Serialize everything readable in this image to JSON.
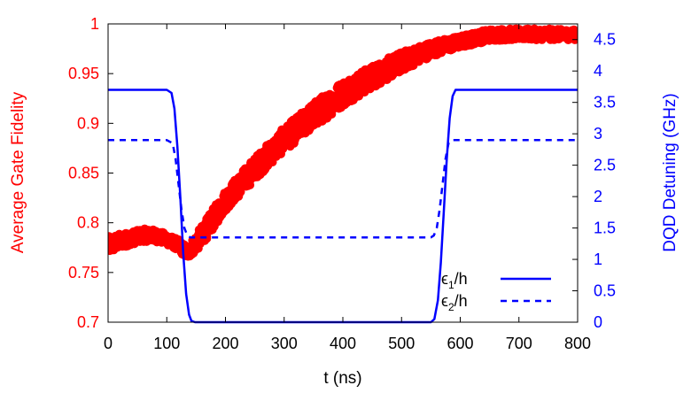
{
  "chart_data": {
    "type": "scatter",
    "xlabel": "t (ns)",
    "ylabel_left": "Average Gate Fidelity",
    "ylabel_right": "DQD Detuning (GHz)",
    "xlim": [
      0,
      800
    ],
    "ylim_left": [
      0.7,
      1.0
    ],
    "ylim_right": [
      0,
      4.75
    ],
    "x_ticks": [
      0,
      100,
      200,
      300,
      400,
      500,
      600,
      700,
      800
    ],
    "y_left_ticks": [
      "0.7",
      "0.75",
      "0.8",
      "0.85",
      "0.9",
      "0.95",
      "1"
    ],
    "y_right_ticks": [
      "0",
      "0.5",
      "1",
      "1.5",
      "2",
      "2.5",
      "3",
      "3.5",
      "4",
      "4.5"
    ],
    "grid": false,
    "legend_position": "bottom-right",
    "colors": {
      "fidelity": "#ff0000",
      "detuning": "#0000ff"
    },
    "fidelity_band": {
      "axis": "left",
      "x": [
        0,
        20,
        40,
        60,
        80,
        100,
        120,
        135,
        160,
        200,
        250,
        300,
        350,
        400,
        450,
        500,
        550,
        600,
        650,
        700,
        750,
        800
      ],
      "lower": [
        0.768,
        0.774,
        0.778,
        0.781,
        0.781,
        0.778,
        0.772,
        0.763,
        0.777,
        0.812,
        0.843,
        0.872,
        0.895,
        0.917,
        0.935,
        0.952,
        0.967,
        0.976,
        0.983,
        0.984,
        0.984,
        0.984
      ],
      "upper": [
        0.786,
        0.789,
        0.791,
        0.794,
        0.793,
        0.789,
        0.783,
        0.776,
        0.797,
        0.833,
        0.866,
        0.896,
        0.921,
        0.943,
        0.958,
        0.972,
        0.982,
        0.988,
        0.995,
        0.995,
        0.995,
        0.994
      ]
    },
    "series": [
      {
        "name": "ϵ1/h",
        "legend_main": "ϵ",
        "legend_sub": "1",
        "legend_rest": "/h",
        "axis": "right",
        "style": "solid",
        "x": [
          0,
          100,
          108,
          113,
          118,
          123,
          128,
          133,
          138,
          142,
          148,
          550,
          556,
          562,
          567,
          572,
          577,
          582,
          587,
          592,
          600,
          800
        ],
        "y": [
          3.7,
          3.7,
          3.65,
          3.4,
          2.8,
          2.0,
          1.1,
          0.45,
          0.12,
          0.02,
          0.0,
          0.0,
          0.05,
          0.35,
          0.95,
          1.75,
          2.6,
          3.25,
          3.6,
          3.7,
          3.7,
          3.7
        ]
      },
      {
        "name": "ϵ2/h",
        "legend_main": "ϵ",
        "legend_sub": "2",
        "legend_rest": "/h",
        "axis": "right",
        "style": "dashed",
        "x": [
          0,
          100,
          110,
          115,
          120,
          125,
          130,
          135,
          140,
          150,
          550,
          555,
          560,
          565,
          570,
          575,
          580,
          585,
          590,
          800
        ],
        "y": [
          2.9,
          2.9,
          2.85,
          2.6,
          2.2,
          1.8,
          1.5,
          1.38,
          1.35,
          1.35,
          1.35,
          1.38,
          1.5,
          1.8,
          2.2,
          2.6,
          2.85,
          2.9,
          2.9,
          2.9
        ]
      }
    ]
  }
}
